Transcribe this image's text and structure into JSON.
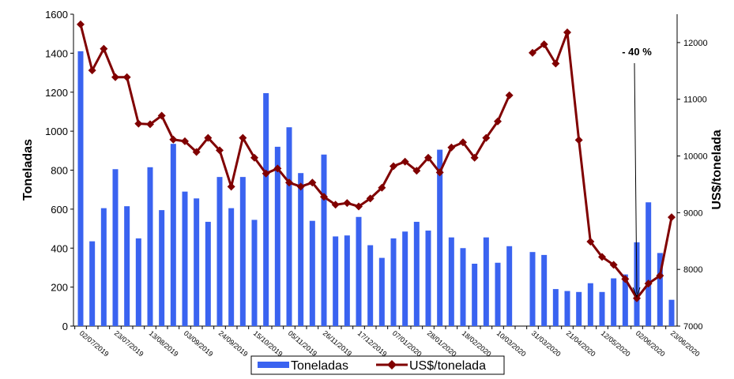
{
  "chart_data": {
    "type": "combo",
    "categories": [
      "02/07/2019",
      null,
      null,
      "23/07/2019",
      null,
      null,
      "13/08/2019",
      null,
      null,
      "03/09/2019",
      null,
      null,
      "24/09/2019",
      null,
      null,
      "15/10/2019",
      null,
      null,
      "05/11/2019",
      null,
      null,
      "26/11/2019",
      null,
      null,
      "17/12/2019",
      null,
      null,
      "07/01/2020",
      null,
      null,
      "28/01/2020",
      null,
      null,
      "18/02/2020",
      null,
      null,
      "10/03/2020",
      null,
      null,
      "31/03/2020",
      null,
      null,
      "21/04/2020",
      null,
      null,
      "12/05/2020",
      null,
      null,
      "02/06/2020",
      null,
      null,
      "23/06/2020"
    ],
    "series": [
      {
        "name": "Toneladas",
        "type": "bar",
        "color": "#3a63f0",
        "values": [
          1410,
          435,
          605,
          805,
          615,
          450,
          815,
          595,
          935,
          690,
          655,
          535,
          765,
          605,
          765,
          545,
          1195,
          920,
          1020,
          785,
          540,
          880,
          460,
          465,
          560,
          415,
          350,
          450,
          485,
          535,
          490,
          905,
          455,
          400,
          320,
          455,
          325,
          410,
          null,
          380,
          365,
          190,
          180,
          175,
          220,
          175,
          245,
          265,
          430,
          635,
          375,
          135
        ]
      },
      {
        "name": "US$/tonelada",
        "type": "line",
        "color": "#800000",
        "axis": "y2",
        "values": [
          12320,
          11510,
          11890,
          11390,
          11390,
          10570,
          10560,
          10710,
          10290,
          10260,
          10070,
          10320,
          10100,
          9460,
          10320,
          9970,
          9690,
          9780,
          9530,
          9460,
          9530,
          9280,
          9140,
          9170,
          9110,
          9250,
          9440,
          9820,
          9900,
          9740,
          9970,
          9710,
          10150,
          10240,
          9970,
          10320,
          10610,
          11070,
          null,
          11820,
          11970,
          11630,
          12180,
          10280,
          8490,
          8220,
          8080,
          7830,
          7490,
          7750,
          7890,
          8920
        ]
      }
    ],
    "ylabel": "Toneladas",
    "y2label": "US$/tonelada",
    "ylim": [
      0,
      1600
    ],
    "yticks": [
      0,
      200,
      400,
      600,
      800,
      1000,
      1200,
      1400,
      1600
    ],
    "y2lim": [
      7000,
      12500
    ],
    "y2ticks": [
      7000,
      8000,
      9000,
      10000,
      11000,
      12000
    ],
    "annotation": "- 40 %",
    "legend": "bottom",
    "grid": false
  }
}
